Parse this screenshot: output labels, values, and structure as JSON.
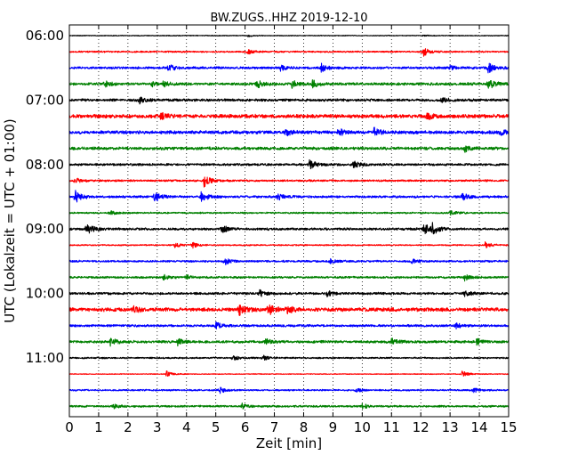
{
  "chart_data": {
    "type": "line",
    "title": "BW.ZUGS..HHZ 2019-12-10",
    "xlabel": "Zeit  [min]",
    "ylabel": "UTC (Lokalzeit = UTC + 01:00)",
    "xlim": [
      0,
      15
    ],
    "x_ticks": [
      "0",
      "1",
      "2",
      "3",
      "4",
      "5",
      "6",
      "7",
      "8",
      "9",
      "10",
      "11",
      "12",
      "13",
      "14",
      "15"
    ],
    "y_ticks": [
      {
        "label": "06:00",
        "trace": 0
      },
      {
        "label": "07:00",
        "trace": 4
      },
      {
        "label": "08:00",
        "trace": 8
      },
      {
        "label": "09:00",
        "trace": 12
      },
      {
        "label": "10:00",
        "trace": 16
      },
      {
        "label": "11:00",
        "trace": 20
      }
    ],
    "grid": "vertical-dotted",
    "trace_minutes": 15,
    "color_cycle": [
      "#000000",
      "#ff0000",
      "#0000ff",
      "#008000"
    ],
    "traces": [
      {
        "start": "06:00",
        "base_amp": 0.06,
        "events": [
          [
            6.1,
            0.12
          ],
          [
            12.1,
            0.1
          ]
        ]
      },
      {
        "start": "06:15",
        "base_amp": 0.12,
        "events": [
          [
            6.1,
            0.35
          ],
          [
            12.1,
            0.6
          ]
        ]
      },
      {
        "start": "06:30",
        "base_amp": 0.18,
        "events": [
          [
            3.4,
            0.5
          ],
          [
            7.2,
            0.4
          ],
          [
            8.6,
            0.6
          ],
          [
            13.0,
            0.25
          ],
          [
            14.3,
            0.7
          ]
        ]
      },
      {
        "start": "06:45",
        "base_amp": 0.2,
        "events": [
          [
            1.2,
            0.4
          ],
          [
            2.8,
            0.35
          ],
          [
            3.2,
            0.3
          ],
          [
            6.4,
            0.55
          ],
          [
            7.6,
            0.5
          ],
          [
            8.3,
            0.55
          ],
          [
            14.3,
            0.8
          ]
        ]
      },
      {
        "start": "07:00",
        "base_amp": 0.2,
        "events": [
          [
            2.4,
            0.45
          ],
          [
            12.7,
            0.35
          ]
        ]
      },
      {
        "start": "07:15",
        "base_amp": 0.28,
        "events": [
          [
            3.1,
            0.5
          ],
          [
            12.2,
            0.45
          ]
        ]
      },
      {
        "start": "07:30",
        "base_amp": 0.25,
        "events": [
          [
            7.4,
            0.45
          ],
          [
            9.2,
            0.5
          ],
          [
            10.4,
            0.55
          ],
          [
            14.7,
            0.35
          ]
        ]
      },
      {
        "start": "07:45",
        "base_amp": 0.22,
        "events": [
          [
            13.5,
            0.45
          ]
        ]
      },
      {
        "start": "08:00",
        "base_amp": 0.18,
        "events": [
          [
            8.2,
            0.75
          ],
          [
            9.7,
            0.65
          ]
        ]
      },
      {
        "start": "08:15",
        "base_amp": 0.15,
        "events": [
          [
            0.2,
            0.4
          ],
          [
            4.6,
            0.9
          ]
        ]
      },
      {
        "start": "08:30",
        "base_amp": 0.18,
        "events": [
          [
            0.2,
            0.95
          ],
          [
            2.9,
            0.8
          ],
          [
            4.5,
            0.8
          ],
          [
            7.1,
            0.45
          ],
          [
            13.4,
            0.5
          ]
        ]
      },
      {
        "start": "08:45",
        "base_amp": 0.12,
        "events": [
          [
            1.4,
            0.3
          ],
          [
            13.0,
            0.3
          ]
        ]
      },
      {
        "start": "09:00",
        "base_amp": 0.18,
        "events": [
          [
            0.6,
            0.85
          ],
          [
            5.2,
            0.55
          ],
          [
            12.1,
            0.85
          ],
          [
            12.4,
            0.7
          ]
        ]
      },
      {
        "start": "09:15",
        "base_amp": 0.1,
        "events": [
          [
            3.6,
            0.3
          ],
          [
            4.2,
            0.4
          ],
          [
            14.2,
            0.45
          ]
        ]
      },
      {
        "start": "09:30",
        "base_amp": 0.15,
        "events": [
          [
            5.3,
            0.5
          ],
          [
            8.9,
            0.3
          ],
          [
            11.7,
            0.3
          ]
        ]
      },
      {
        "start": "09:45",
        "base_amp": 0.16,
        "events": [
          [
            3.2,
            0.35
          ],
          [
            4.0,
            0.3
          ],
          [
            13.5,
            0.4
          ]
        ]
      },
      {
        "start": "10:00",
        "base_amp": 0.18,
        "events": [
          [
            6.5,
            0.5
          ],
          [
            8.8,
            0.35
          ],
          [
            13.5,
            0.35
          ]
        ]
      },
      {
        "start": "10:15",
        "base_amp": 0.28,
        "events": [
          [
            2.2,
            0.45
          ],
          [
            5.8,
            0.7
          ],
          [
            6.8,
            0.75
          ],
          [
            7.4,
            0.6
          ]
        ]
      },
      {
        "start": "10:30",
        "base_amp": 0.18,
        "events": [
          [
            5.0,
            0.5
          ],
          [
            13.2,
            0.35
          ]
        ]
      },
      {
        "start": "10:45",
        "base_amp": 0.2,
        "events": [
          [
            1.4,
            0.5
          ],
          [
            3.7,
            0.45
          ],
          [
            6.7,
            0.4
          ],
          [
            11.0,
            0.4
          ],
          [
            13.9,
            0.45
          ]
        ]
      },
      {
        "start": "11:00",
        "base_amp": 0.12,
        "events": [
          [
            5.6,
            0.35
          ],
          [
            6.6,
            0.35
          ]
        ]
      },
      {
        "start": "11:15",
        "base_amp": 0.06,
        "events": [
          [
            3.3,
            0.45
          ],
          [
            13.4,
            0.45
          ]
        ]
      },
      {
        "start": "11:30",
        "base_amp": 0.12,
        "events": [
          [
            5.1,
            0.5
          ],
          [
            9.8,
            0.25
          ],
          [
            13.8,
            0.3
          ]
        ]
      },
      {
        "start": "11:45",
        "base_amp": 0.15,
        "events": [
          [
            1.5,
            0.3
          ],
          [
            5.9,
            0.35
          ],
          [
            10.0,
            0.35
          ]
        ]
      }
    ]
  }
}
